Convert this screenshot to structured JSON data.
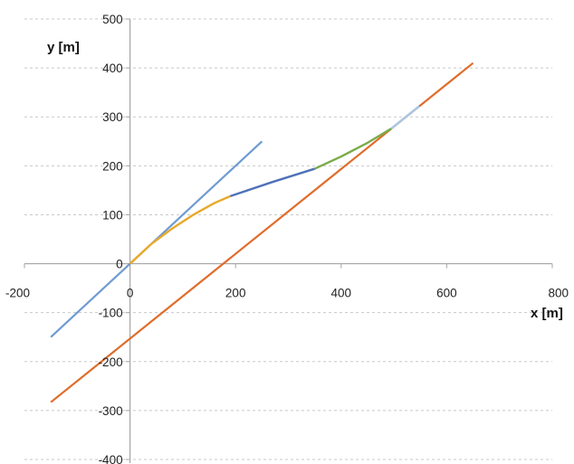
{
  "chart_data": {
    "type": "line",
    "title": "",
    "xlabel": "x [m]",
    "ylabel": "y [m]",
    "xlim": [
      -200,
      800
    ],
    "ylim": [
      -400,
      500
    ],
    "x_ticks": [
      -200,
      0,
      200,
      400,
      600,
      800
    ],
    "y_ticks": [
      -400,
      -300,
      -200,
      -100,
      0,
      100,
      200,
      300,
      400,
      500
    ],
    "x_tick_labels": [
      "-200",
      "0",
      "200",
      "400",
      "600",
      "800"
    ],
    "y_tick_labels": [
      "-400",
      "-300",
      "-200",
      "-100",
      "0",
      "100",
      "200",
      "300",
      "400",
      "500"
    ],
    "grid": {
      "horizontal": true,
      "vertical": false,
      "style": "dashed",
      "color": "#c8c8c8"
    },
    "legend": "none",
    "series": [
      {
        "color": "#6f9bd1",
        "width": 2.2,
        "points": [
          [
            -150,
            -150
          ],
          [
            250,
            250
          ]
        ]
      },
      {
        "color": "#e06c2a",
        "width": 2.2,
        "points": [
          [
            -150,
            -283
          ],
          [
            650,
            410
          ]
        ]
      },
      {
        "color": "#e8a92a",
        "width": 2.4,
        "points": [
          [
            0,
            0
          ],
          [
            40,
            40
          ],
          [
            80,
            72
          ],
          [
            120,
            100
          ],
          [
            160,
            124
          ],
          [
            190,
            138
          ]
        ]
      },
      {
        "color": "#4f72b8",
        "width": 2.4,
        "points": [
          [
            190,
            138
          ],
          [
            270,
            167
          ],
          [
            350,
            194
          ]
        ]
      },
      {
        "color": "#7aab4a",
        "width": 2.4,
        "points": [
          [
            350,
            194
          ],
          [
            400,
            219
          ],
          [
            450,
            247
          ],
          [
            495,
            276
          ]
        ]
      },
      {
        "color": "#a9c7e6",
        "width": 2.4,
        "points": [
          [
            495,
            276
          ],
          [
            520,
            298
          ],
          [
            548,
            322
          ]
        ]
      }
    ]
  }
}
